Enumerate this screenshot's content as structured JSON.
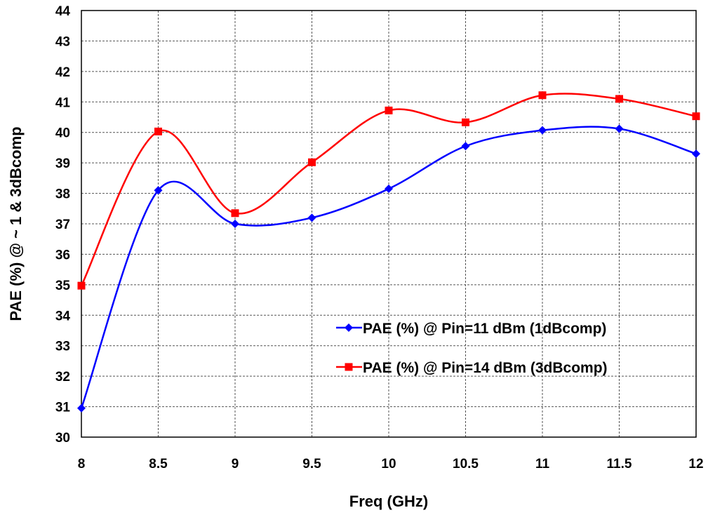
{
  "chart_data": {
    "type": "line",
    "title": "",
    "xlabel": "Freq (GHz)",
    "ylabel": "PAE (%) @ ~ 1 & 3dBcomp",
    "x": [
      8,
      8.5,
      9,
      9.5,
      10,
      10.5,
      11,
      11.5,
      12
    ],
    "x_tick_labels": [
      "8",
      "8.5",
      "9",
      "9.5",
      "10",
      "10.5",
      "11",
      "11.5",
      "12"
    ],
    "xlim": [
      8,
      12
    ],
    "ylim": [
      30,
      44
    ],
    "y_ticks": [
      30,
      31,
      32,
      33,
      34,
      35,
      36,
      37,
      38,
      39,
      40,
      41,
      42,
      43,
      44
    ],
    "y_tick_labels": [
      "30",
      "31",
      "32",
      "33",
      "34",
      "35",
      "36",
      "37",
      "38",
      "39",
      "40",
      "41",
      "42",
      "43",
      "44"
    ],
    "grid": true,
    "smooth": true,
    "legend_position": "inside-lower-right",
    "series": [
      {
        "name": "PAE (%) @ Pin=11 dBm (1dBcomp)",
        "color": "#0000ff",
        "marker": "diamond",
        "values": [
          30.95,
          38.1,
          37.0,
          37.2,
          38.15,
          39.55,
          40.07,
          40.12,
          39.3
        ]
      },
      {
        "name": "PAE (%) @ Pin=14 dBm (3dBcomp)",
        "color": "#ff0000",
        "marker": "square",
        "values": [
          34.97,
          40.03,
          37.35,
          39.02,
          40.72,
          40.33,
          41.22,
          41.1,
          40.53
        ]
      }
    ]
  }
}
